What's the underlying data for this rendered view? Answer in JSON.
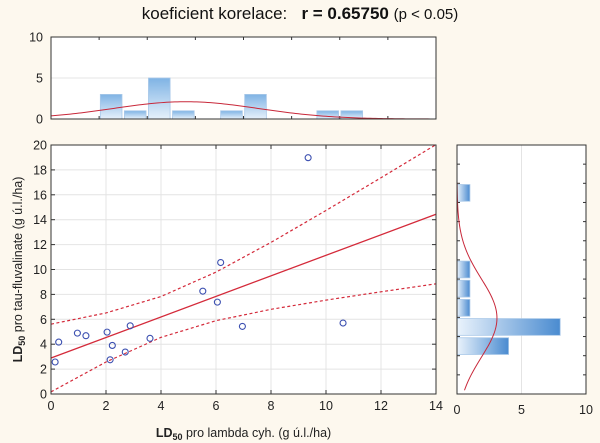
{
  "title": {
    "prefix": "koeficient korelace:",
    "r": "r = 0.65750",
    "p": "(p < 0.05)"
  },
  "chart_data": [
    {
      "type": "scatter",
      "panel": "main",
      "xlabel": {
        "main": "LD",
        "sub": "50",
        "rest": " pro lambda cyh. (g ú.l./ha)"
      },
      "ylabel": {
        "main": "LD",
        "sub": "50",
        "rest": " pro tau-fluvalinate (g ú.l./ha)"
      },
      "xlim": [
        0,
        14
      ],
      "ylim": [
        0,
        20
      ],
      "xticks": [
        "0",
        "2",
        "4",
        "6",
        "8",
        "10",
        "12",
        "14"
      ],
      "yticks": [
        "0",
        "2",
        "4",
        "6",
        "8",
        "10",
        "12",
        "14",
        "16",
        "18",
        "20"
      ],
      "grid": true,
      "points": [
        [
          0.15,
          2.57
        ],
        [
          0.28,
          4.17
        ],
        [
          0.96,
          4.89
        ],
        [
          1.27,
          4.68
        ],
        [
          2.04,
          4.97
        ],
        [
          2.15,
          2.75
        ],
        [
          2.23,
          3.9
        ],
        [
          2.7,
          3.37
        ],
        [
          2.88,
          5.48
        ],
        [
          3.6,
          4.47
        ],
        [
          5.52,
          8.26
        ],
        [
          6.05,
          7.38
        ],
        [
          6.17,
          10.56
        ],
        [
          6.96,
          5.43
        ],
        [
          9.35,
          18.98
        ],
        [
          10.62,
          5.7
        ]
      ],
      "regression": {
        "intercept": 2.89,
        "slope": 0.825
      },
      "confidence_band": {
        "x": [
          0,
          2,
          4,
          6,
          8,
          10,
          12,
          14
        ],
        "lower": [
          0.17,
          2.57,
          4.55,
          5.89,
          6.8,
          7.54,
          8.21,
          8.85
        ],
        "upper": [
          5.61,
          6.51,
          7.83,
          9.79,
          12.18,
          14.74,
          17.37,
          20.03
        ]
      },
      "colors": {
        "points": "#3b4fb0",
        "line": "#d42a3a"
      }
    },
    {
      "type": "bar",
      "panel": "top-histogram",
      "xlim": [
        0,
        14
      ],
      "ylim": [
        0,
        10
      ],
      "yticks": [
        "0",
        "5",
        "10"
      ],
      "bins": [
        [
          1.75,
          2.625,
          3
        ],
        [
          2.625,
          3.5,
          1
        ],
        [
          3.5,
          4.375,
          5
        ],
        [
          4.375,
          5.25,
          1
        ],
        [
          6.125,
          7,
          1
        ],
        [
          7,
          7.875,
          3
        ],
        [
          9.625,
          10.5,
          1
        ],
        [
          10.5,
          11.375,
          1
        ]
      ],
      "normal_fit": {
        "mean": 4.9,
        "sd": 2.65,
        "n": 16,
        "bin_width": 0.875
      }
    },
    {
      "type": "bar",
      "panel": "right-histogram",
      "xlim": [
        0,
        10
      ],
      "ylim": [
        0,
        20
      ],
      "xticks": [
        "0",
        "5",
        "10"
      ],
      "bins": [
        [
          3.077,
          4.615,
          4
        ],
        [
          4.615,
          6.154,
          8
        ],
        [
          6.154,
          7.692,
          1
        ],
        [
          7.692,
          9.231,
          1
        ],
        [
          9.231,
          10.769,
          1
        ],
        [
          15.385,
          16.923,
          1
        ]
      ],
      "normal_fit": {
        "mean": 6.1,
        "sd": 3.17,
        "n": 16,
        "bin_width": 1.538
      }
    }
  ]
}
